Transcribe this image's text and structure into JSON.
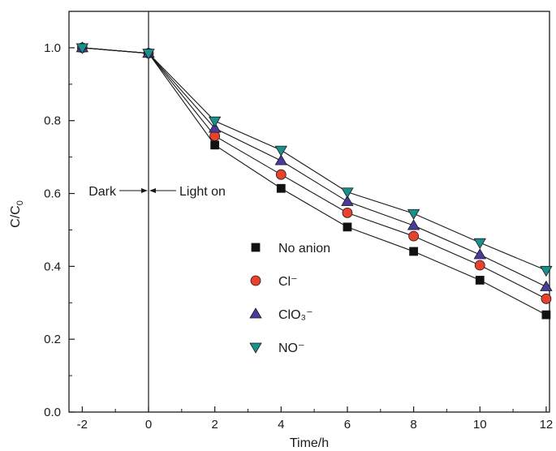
{
  "chart_data": {
    "type": "line",
    "xlabel": "Time/h",
    "ylabel": {
      "main": "C/C",
      "sub": "0"
    },
    "xlim": [
      -2.4,
      12.1
    ],
    "ylim": [
      0,
      1.1
    ],
    "xticks": [
      -2,
      0,
      2,
      4,
      6,
      8,
      10,
      12
    ],
    "xtick_labels": [
      "-2",
      "0",
      "2",
      "4",
      "6",
      "8",
      "10",
      "12"
    ],
    "yticks": [
      0.0,
      0.2,
      0.4,
      0.6,
      0.8,
      1.0
    ],
    "ytick_labels": [
      "0.0",
      "0.2",
      "0.4",
      "0.6",
      "0.8",
      "1.0"
    ],
    "x": [
      -2,
      0,
      2,
      4,
      6,
      8,
      10,
      12
    ],
    "series": [
      {
        "name": "No anion",
        "marker": "square",
        "color": "#111111",
        "values": [
          1.0,
          0.985,
          0.733,
          0.614,
          0.508,
          0.441,
          0.362,
          0.267
        ]
      },
      {
        "name": "Cl⁻",
        "marker": "circle",
        "color": "#e8412c",
        "values": [
          1.0,
          0.985,
          0.758,
          0.652,
          0.547,
          0.483,
          0.403,
          0.311
        ]
      },
      {
        "name": "ClO₃⁻",
        "marker": "triangle-up",
        "color": "#4b3a9c",
        "values": [
          1.0,
          0.985,
          0.779,
          0.69,
          0.578,
          0.512,
          0.432,
          0.344
        ]
      },
      {
        "name": "NO⁻",
        "marker": "triangle-down",
        "color": "#1a8f8c",
        "values": [
          1.0,
          0.985,
          0.799,
          0.719,
          0.604,
          0.545,
          0.465,
          0.389
        ]
      }
    ],
    "legend_position": "lower-middle",
    "grid": false,
    "divider_x": 0,
    "annotations": [
      {
        "text": "Dark",
        "x": 0,
        "y": 0.608,
        "arrow": "right-pointing, left of divider"
      },
      {
        "text": "Light on",
        "x": 0,
        "y": 0.608,
        "arrow": "left-pointing, right of divider"
      }
    ]
  }
}
